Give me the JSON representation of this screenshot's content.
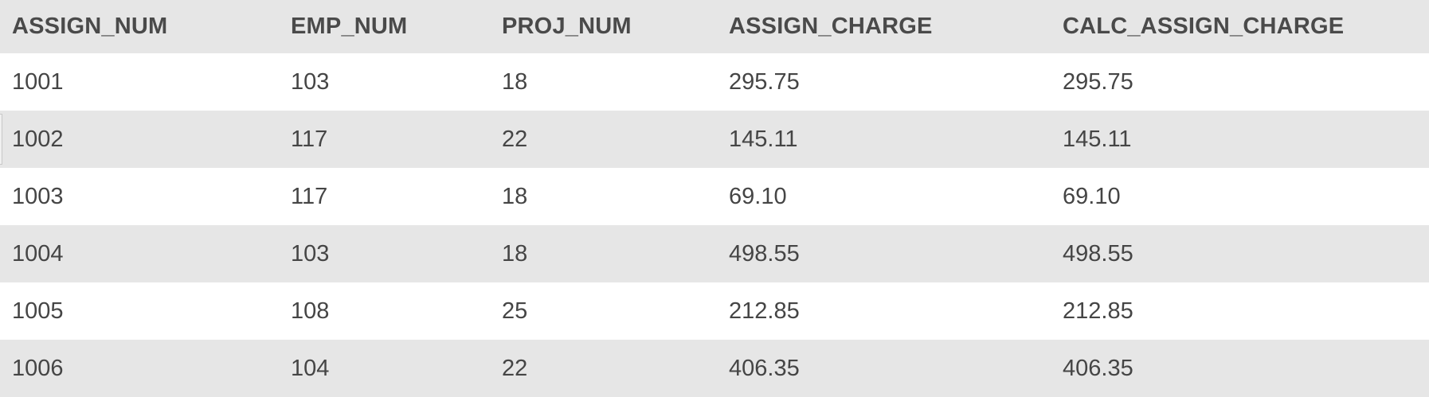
{
  "table": {
    "columns": [
      "ASSIGN_NUM",
      "EMP_NUM",
      "PROJ_NUM",
      "ASSIGN_CHARGE",
      "CALC_ASSIGN_CHARGE"
    ],
    "rows": [
      [
        "1001",
        "103",
        "18",
        "295.75",
        "295.75"
      ],
      [
        "1002",
        "117",
        "22",
        "145.11",
        "145.11"
      ],
      [
        "1003",
        "117",
        "18",
        "69.10",
        "69.10"
      ],
      [
        "1004",
        "103",
        "18",
        "498.55",
        "498.55"
      ],
      [
        "1005",
        "108",
        "25",
        "212.85",
        "212.85"
      ],
      [
        "1006",
        "104",
        "22",
        "406.35",
        "406.35"
      ]
    ]
  },
  "colors": {
    "header_bg": "#e6e6e6",
    "stripe_bg": "#e6e6e6",
    "row_bg": "#ffffff",
    "text": "#454545"
  }
}
